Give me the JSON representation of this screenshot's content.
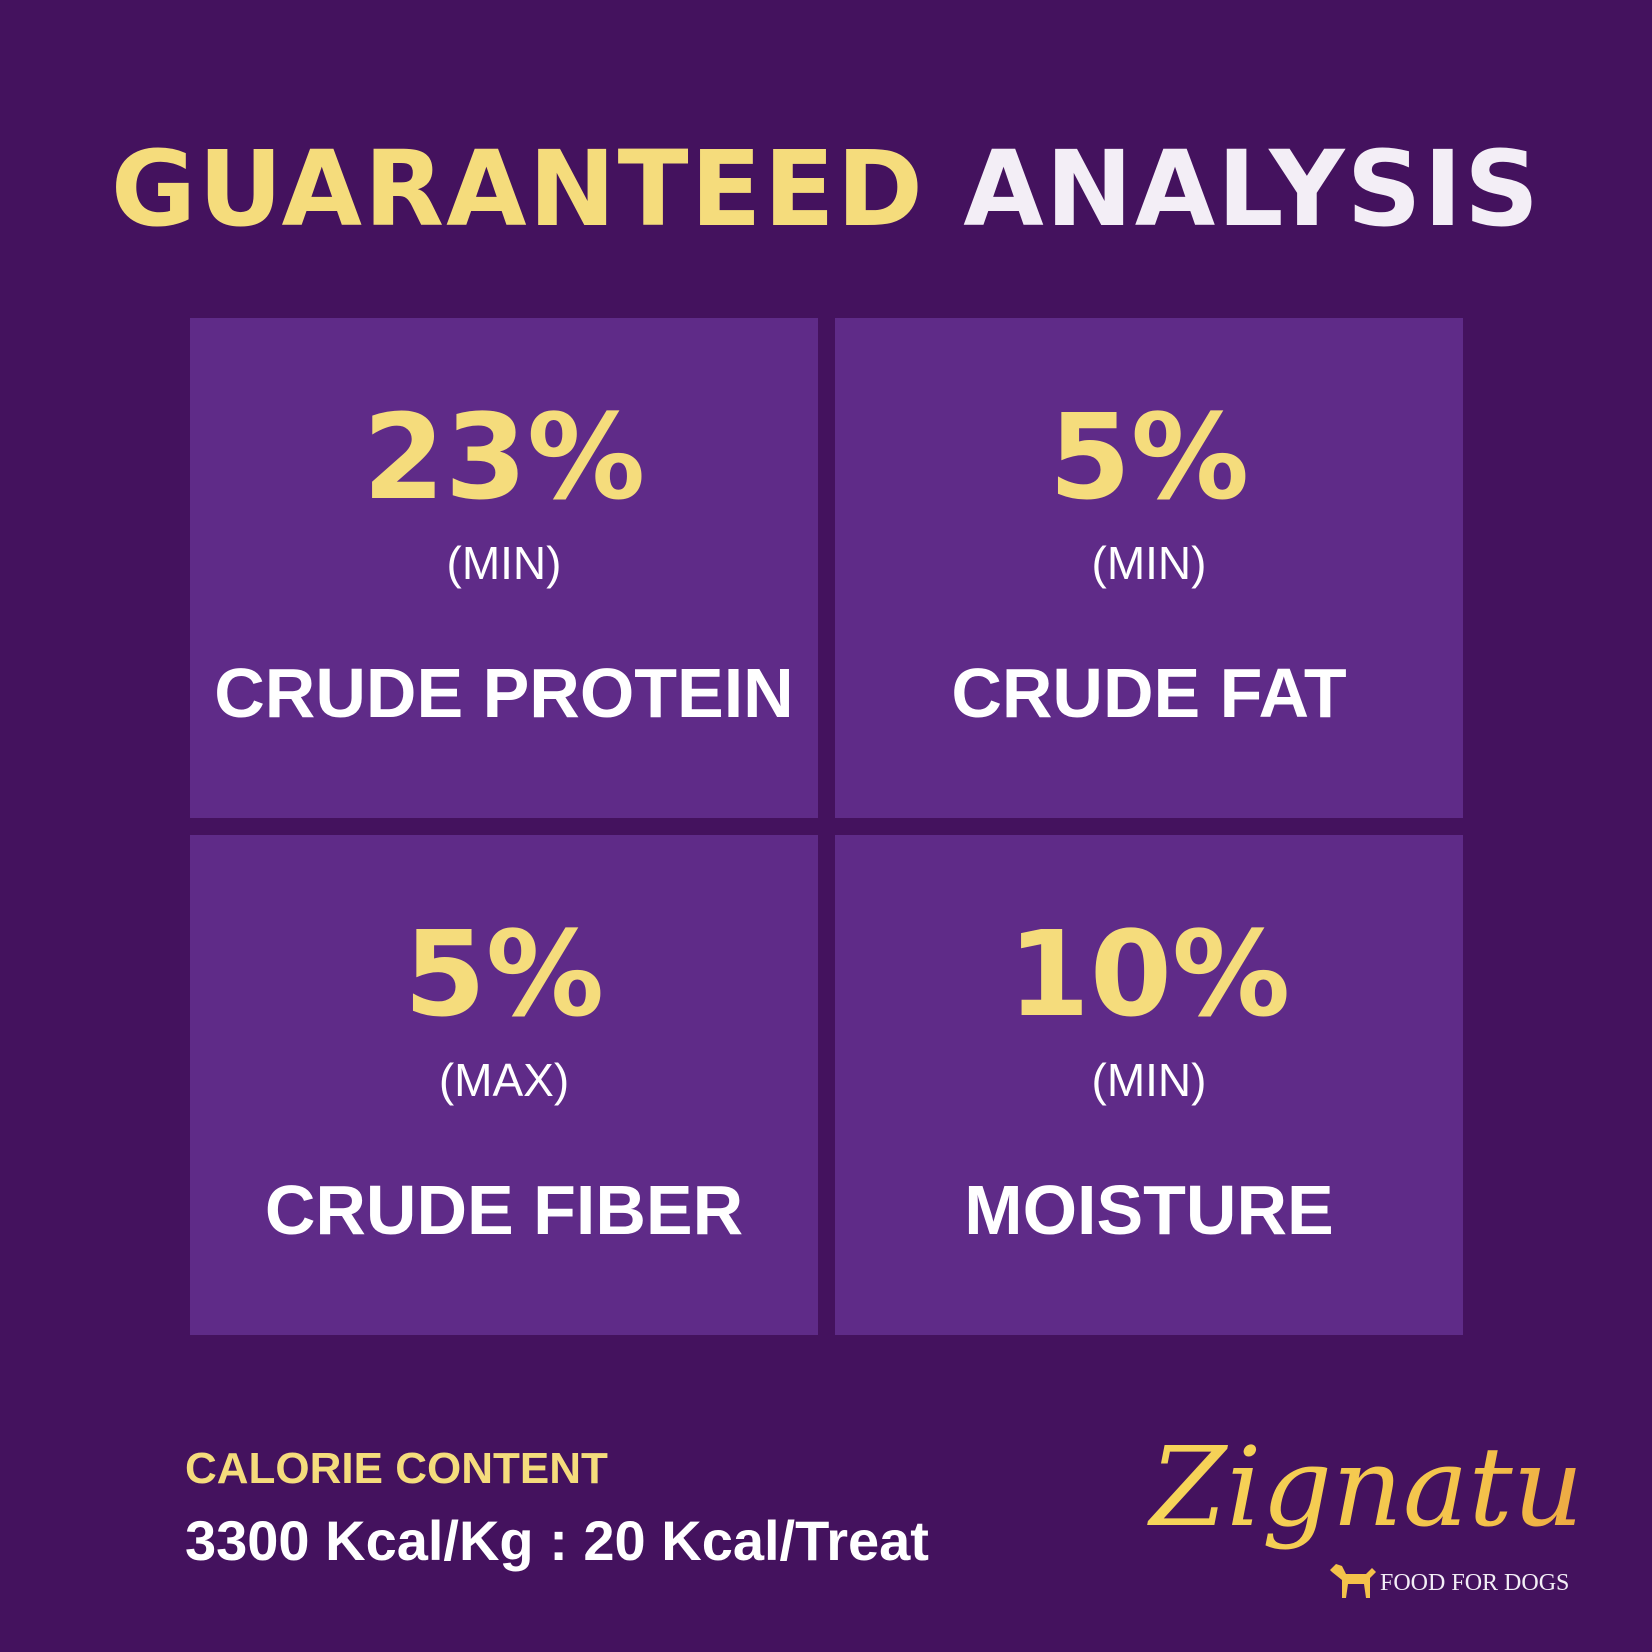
{
  "colors": {
    "background": "#44125e",
    "box": "#5f2b88",
    "accent": "#f5dc7c",
    "text": "#ffffff"
  },
  "title": {
    "part1": "GUARANTEED",
    "part2": "ANALYSIS"
  },
  "items": [
    {
      "value": "23%",
      "qualifier": "(MIN)",
      "label": "CRUDE PROTEIN"
    },
    {
      "value": "5%",
      "qualifier": "(MIN)",
      "label": "CRUDE FAT"
    },
    {
      "value": "5%",
      "qualifier": "(MAX)",
      "label": "CRUDE FIBER"
    },
    {
      "value": "10%",
      "qualifier": "(MIN)",
      "label": "MOISTURE"
    }
  ],
  "calorie": {
    "label": "CALORIE CONTENT",
    "value": "3300 Kcal/Kg : 20 Kcal/Treat"
  },
  "logo": {
    "brand": "Zignature",
    "tagline": "FOOD FOR DOGS"
  }
}
